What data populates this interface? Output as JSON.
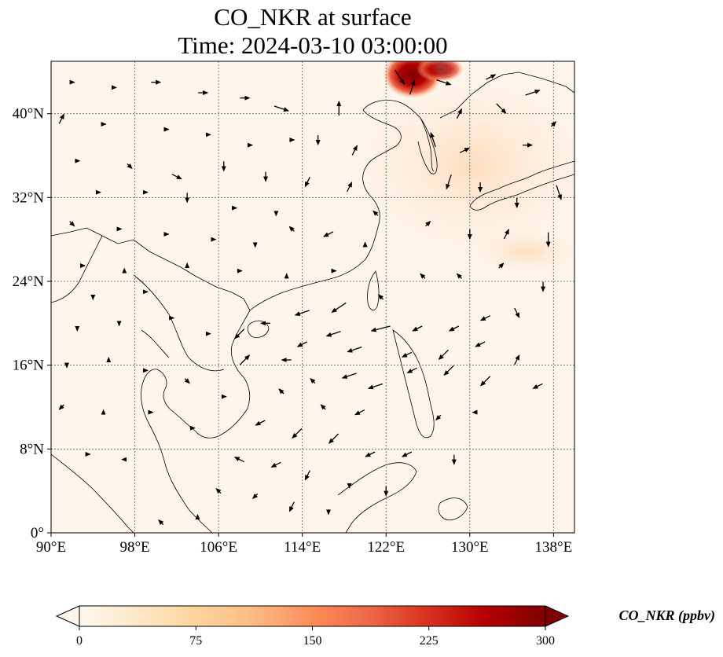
{
  "title_line1": "CO_NKR at surface",
  "title_line2": "Time: 2024-03-10 03:00:00",
  "map": {
    "lon_range": [
      90,
      140
    ],
    "lat_range": [
      0,
      45
    ],
    "lon_ticks": [
      {
        "value": 90,
        "label": "90°E"
      },
      {
        "value": 98,
        "label": "98°E"
      },
      {
        "value": 106,
        "label": "106°E"
      },
      {
        "value": 114,
        "label": "114°E"
      },
      {
        "value": 122,
        "label": "122°E"
      },
      {
        "value": 130,
        "label": "130°E"
      },
      {
        "value": 138,
        "label": "138°E"
      }
    ],
    "lat_ticks": [
      {
        "value": 0,
        "label": "0°"
      },
      {
        "value": 8,
        "label": "8°N"
      },
      {
        "value": 16,
        "label": "16°N"
      },
      {
        "value": 24,
        "label": "24°N"
      },
      {
        "value": 32,
        "label": "32°N"
      },
      {
        "value": 40,
        "label": "40°N"
      }
    ],
    "gridlines": true,
    "background_color": "#fff5eb"
  },
  "colorbar": {
    "label": "CO_NKR (ppbv)",
    "colormap": "OrRd",
    "colors": [
      "#fff7ec",
      "#fee8c8",
      "#fdd49e",
      "#fdbb84",
      "#fc8d59",
      "#ef6548",
      "#d7301f",
      "#b30000",
      "#7f0000"
    ],
    "range": [
      0,
      300
    ],
    "extend": "both",
    "ticks": [
      {
        "value": 0,
        "label": "0"
      },
      {
        "value": 75,
        "label": "75"
      },
      {
        "value": 150,
        "label": "150"
      },
      {
        "value": 225,
        "label": "225"
      },
      {
        "value": 300,
        "label": "300"
      }
    ]
  },
  "wind_vectors": [
    {
      "lon": 123.3,
      "lat": 43.5,
      "u": 2,
      "v": -3
    },
    {
      "lon": 124.5,
      "lat": 42.5,
      "u": 1,
      "v": 3
    },
    {
      "lon": 127.5,
      "lat": 43.0,
      "u": 3,
      "v": -1
    },
    {
      "lon": 132.0,
      "lat": 43.5,
      "u": 2,
      "v": 1
    },
    {
      "lon": 136.0,
      "lat": 42.0,
      "u": 3,
      "v": 1
    },
    {
      "lon": 129.0,
      "lat": 40.0,
      "u": 1,
      "v": 2
    },
    {
      "lon": 133.0,
      "lat": 40.5,
      "u": 2,
      "v": -2
    },
    {
      "lon": 138.0,
      "lat": 39.0,
      "u": 1,
      "v": 1
    },
    {
      "lon": 126.5,
      "lat": 37.5,
      "u": -1,
      "v": 3
    },
    {
      "lon": 129.5,
      "lat": 36.5,
      "u": 2,
      "v": 1
    },
    {
      "lon": 135.5,
      "lat": 37.0,
      "u": 2,
      "v": 0
    },
    {
      "lon": 128.0,
      "lat": 33.5,
      "u": -1,
      "v": -3
    },
    {
      "lon": 131.0,
      "lat": 33.0,
      "u": 0,
      "v": -2
    },
    {
      "lon": 134.5,
      "lat": 31.5,
      "u": 0,
      "v": -2
    },
    {
      "lon": 138.5,
      "lat": 32.5,
      "u": 1,
      "v": -3
    },
    {
      "lon": 126.0,
      "lat": 29.5,
      "u": 1,
      "v": 1
    },
    {
      "lon": 130.0,
      "lat": 28.5,
      "u": 0,
      "v": -2
    },
    {
      "lon": 133.5,
      "lat": 28.5,
      "u": 1,
      "v": 2
    },
    {
      "lon": 137.5,
      "lat": 28.0,
      "u": 0,
      "v": -3
    },
    {
      "lon": 117.5,
      "lat": 40.5,
      "u": 0,
      "v": 3
    },
    {
      "lon": 115.5,
      "lat": 37.5,
      "u": 0,
      "v": -2
    },
    {
      "lon": 119.0,
      "lat": 36.5,
      "u": 1,
      "v": 2
    },
    {
      "lon": 114.5,
      "lat": 33.5,
      "u": -1,
      "v": -2
    },
    {
      "lon": 118.5,
      "lat": 33.0,
      "u": 1,
      "v": 2
    },
    {
      "lon": 121.0,
      "lat": 30.5,
      "u": -1,
      "v": 1
    },
    {
      "lon": 116.5,
      "lat": 28.5,
      "u": -2,
      "v": -1
    },
    {
      "lon": 120.0,
      "lat": 27.5,
      "u": 0,
      "v": 1
    },
    {
      "lon": 113.0,
      "lat": 29.0,
      "u": -1,
      "v": 1
    },
    {
      "lon": 112.0,
      "lat": 40.5,
      "u": 3,
      "v": -1
    },
    {
      "lon": 108.5,
      "lat": 41.5,
      "u": 2,
      "v": 0
    },
    {
      "lon": 104.5,
      "lat": 42.0,
      "u": 2,
      "v": 0
    },
    {
      "lon": 100.0,
      "lat": 43.0,
      "u": 2,
      "v": 0
    },
    {
      "lon": 96.0,
      "lat": 42.5,
      "u": 1,
      "v": 0
    },
    {
      "lon": 92.0,
      "lat": 43.0,
      "u": 1,
      "v": 0
    },
    {
      "lon": 91.0,
      "lat": 39.5,
      "u": 1,
      "v": 2
    },
    {
      "lon": 95.0,
      "lat": 39.0,
      "u": 1,
      "v": 0
    },
    {
      "lon": 101.0,
      "lat": 38.5,
      "u": 1,
      "v": 0
    },
    {
      "lon": 105.0,
      "lat": 38.0,
      "u": 1,
      "v": 0
    },
    {
      "lon": 109.0,
      "lat": 37.0,
      "u": 1,
      "v": 0
    },
    {
      "lon": 113.0,
      "lat": 37.5,
      "u": 1,
      "v": 0
    },
    {
      "lon": 92.5,
      "lat": 35.5,
      "u": 1,
      "v": 0
    },
    {
      "lon": 97.5,
      "lat": 35.0,
      "u": 1,
      "v": -1
    },
    {
      "lon": 102.0,
      "lat": 34.0,
      "u": 2,
      "v": -1
    },
    {
      "lon": 106.5,
      "lat": 35.0,
      "u": 0,
      "v": -2
    },
    {
      "lon": 110.5,
      "lat": 34.0,
      "u": 0,
      "v": -2
    },
    {
      "lon": 94.5,
      "lat": 32.5,
      "u": 1,
      "v": 0
    },
    {
      "lon": 99.0,
      "lat": 32.5,
      "u": 1,
      "v": 0
    },
    {
      "lon": 103.0,
      "lat": 32.0,
      "u": 0,
      "v": -2
    },
    {
      "lon": 107.5,
      "lat": 31.0,
      "u": 1,
      "v": 0
    },
    {
      "lon": 111.5,
      "lat": 30.5,
      "u": 0,
      "v": -1
    },
    {
      "lon": 92.0,
      "lat": 29.5,
      "u": 1,
      "v": -1
    },
    {
      "lon": 96.5,
      "lat": 29.0,
      "u": 1,
      "v": 0
    },
    {
      "lon": 101.0,
      "lat": 28.5,
      "u": 1,
      "v": 0
    },
    {
      "lon": 105.5,
      "lat": 28.0,
      "u": 1,
      "v": 0
    },
    {
      "lon": 109.5,
      "lat": 27.5,
      "u": 0,
      "v": -1
    },
    {
      "lon": 93.0,
      "lat": 25.5,
      "u": 1,
      "v": 0
    },
    {
      "lon": 97.0,
      "lat": 25.0,
      "u": 0,
      "v": 1
    },
    {
      "lon": 103.0,
      "lat": 25.5,
      "u": 0,
      "v": 1
    },
    {
      "lon": 108.0,
      "lat": 25.0,
      "u": 1,
      "v": 0
    },
    {
      "lon": 112.5,
      "lat": 24.5,
      "u": 0,
      "v": 1
    },
    {
      "lon": 117.0,
      "lat": 25.0,
      "u": 1,
      "v": 0
    },
    {
      "lon": 121.5,
      "lat": 22.5,
      "u": -1,
      "v": 1
    },
    {
      "lon": 125.5,
      "lat": 24.5,
      "u": -1,
      "v": 1
    },
    {
      "lon": 129.0,
      "lat": 24.5,
      "u": -1,
      "v": 1
    },
    {
      "lon": 133.0,
      "lat": 25.5,
      "u": 1,
      "v": 1
    },
    {
      "lon": 137.0,
      "lat": 23.5,
      "u": 0,
      "v": -2
    },
    {
      "lon": 117.5,
      "lat": 21.5,
      "u": -3,
      "v": -2
    },
    {
      "lon": 114.0,
      "lat": 21.0,
      "u": -3,
      "v": -1
    },
    {
      "lon": 110.5,
      "lat": 20.0,
      "u": -2,
      "v": 0
    },
    {
      "lon": 108.0,
      "lat": 19.0,
      "u": -2,
      "v": -2
    },
    {
      "lon": 117.0,
      "lat": 19.0,
      "u": -3,
      "v": -1
    },
    {
      "lon": 121.5,
      "lat": 19.5,
      "u": -4,
      "v": -1
    },
    {
      "lon": 119.0,
      "lat": 17.5,
      "u": -3,
      "v": -1
    },
    {
      "lon": 114.0,
      "lat": 18.0,
      "u": -2,
      "v": -1
    },
    {
      "lon": 125.0,
      "lat": 19.5,
      "u": -2,
      "v": -1
    },
    {
      "lon": 128.5,
      "lat": 19.5,
      "u": -2,
      "v": -1
    },
    {
      "lon": 131.5,
      "lat": 20.5,
      "u": -2,
      "v": -1
    },
    {
      "lon": 134.5,
      "lat": 21.0,
      "u": 1,
      "v": -2
    },
    {
      "lon": 124.0,
      "lat": 17.0,
      "u": -2,
      "v": -1
    },
    {
      "lon": 127.5,
      "lat": 17.0,
      "u": -2,
      "v": -2
    },
    {
      "lon": 131.0,
      "lat": 18.0,
      "u": -2,
      "v": -1
    },
    {
      "lon": 134.5,
      "lat": 16.5,
      "u": 1,
      "v": 2
    },
    {
      "lon": 112.5,
      "lat": 16.5,
      "u": -2,
      "v": 0
    },
    {
      "lon": 108.5,
      "lat": 16.5,
      "u": 2,
      "v": 2
    },
    {
      "lon": 115.0,
      "lat": 14.5,
      "u": -1,
      "v": 1
    },
    {
      "lon": 118.5,
      "lat": 15.0,
      "u": -3,
      "v": -1
    },
    {
      "lon": 121.0,
      "lat": 14.0,
      "u": -3,
      "v": -1
    },
    {
      "lon": 124.5,
      "lat": 15.5,
      "u": -2,
      "v": -1
    },
    {
      "lon": 128.0,
      "lat": 15.5,
      "u": -2,
      "v": -2
    },
    {
      "lon": 131.5,
      "lat": 14.5,
      "u": -2,
      "v": -2
    },
    {
      "lon": 136.5,
      "lat": 14.0,
      "u": -2,
      "v": -1
    },
    {
      "lon": 112.0,
      "lat": 13.5,
      "u": -1,
      "v": 1
    },
    {
      "lon": 116.0,
      "lat": 12.0,
      "u": -1,
      "v": 1
    },
    {
      "lon": 119.5,
      "lat": 11.5,
      "u": -2,
      "v": -1
    },
    {
      "lon": 127.0,
      "lat": 11.0,
      "u": -1,
      "v": -1
    },
    {
      "lon": 130.5,
      "lat": 11.5,
      "u": -1,
      "v": 0
    },
    {
      "lon": 110.0,
      "lat": 10.5,
      "u": -2,
      "v": -1
    },
    {
      "lon": 113.5,
      "lat": 9.5,
      "u": -2,
      "v": -2
    },
    {
      "lon": 117.0,
      "lat": 9.0,
      "u": -2,
      "v": -2
    },
    {
      "lon": 120.5,
      "lat": 7.5,
      "u": -2,
      "v": -1
    },
    {
      "lon": 124.0,
      "lat": 7.5,
      "u": -2,
      "v": -1
    },
    {
      "lon": 128.5,
      "lat": 7.0,
      "u": 0,
      "v": -2
    },
    {
      "lon": 108.0,
      "lat": 7.0,
      "u": -2,
      "v": 1
    },
    {
      "lon": 111.5,
      "lat": 6.5,
      "u": -2,
      "v": -1
    },
    {
      "lon": 114.5,
      "lat": 5.5,
      "u": -1,
      "v": -2
    },
    {
      "lon": 118.5,
      "lat": 4.5,
      "u": 0,
      "v": -1
    },
    {
      "lon": 122.0,
      "lat": 4.0,
      "u": 0,
      "v": -2
    },
    {
      "lon": 106.0,
      "lat": 4.0,
      "u": -1,
      "v": 1
    },
    {
      "lon": 109.5,
      "lat": 3.5,
      "u": -1,
      "v": -1
    },
    {
      "lon": 113.0,
      "lat": 2.5,
      "u": -1,
      "v": -2
    },
    {
      "lon": 116.5,
      "lat": 2.0,
      "u": 0,
      "v": -1
    },
    {
      "lon": 104.0,
      "lat": 1.5,
      "u": 0,
      "v": 1
    },
    {
      "lon": 100.5,
      "lat": 1.0,
      "u": -1,
      "v": 1
    },
    {
      "lon": 97.0,
      "lat": 7.0,
      "u": -1,
      "v": 0
    },
    {
      "lon": 93.5,
      "lat": 7.5,
      "u": 1,
      "v": 0
    },
    {
      "lon": 91.0,
      "lat": 12.0,
      "u": -1,
      "v": -1
    },
    {
      "lon": 95.0,
      "lat": 11.5,
      "u": 0,
      "v": 1
    },
    {
      "lon": 99.5,
      "lat": 11.5,
      "u": 1,
      "v": 0
    },
    {
      "lon": 103.5,
      "lat": 10.0,
      "u": 1,
      "v": 0
    },
    {
      "lon": 91.5,
      "lat": 16.0,
      "u": 0,
      "v": -1
    },
    {
      "lon": 95.5,
      "lat": 16.5,
      "u": 0,
      "v": 1
    },
    {
      "lon": 99.0,
      "lat": 15.5,
      "u": 1,
      "v": 0
    },
    {
      "lon": 103.0,
      "lat": 14.5,
      "u": 1,
      "v": -1
    },
    {
      "lon": 106.5,
      "lat": 13.0,
      "u": 1,
      "v": 0
    },
    {
      "lon": 92.5,
      "lat": 19.5,
      "u": 0,
      "v": -1
    },
    {
      "lon": 96.5,
      "lat": 20.0,
      "u": 0,
      "v": -1
    },
    {
      "lon": 101.5,
      "lat": 20.5,
      "u": 1,
      "v": 0
    },
    {
      "lon": 105.0,
      "lat": 19.0,
      "u": 1,
      "v": 0
    },
    {
      "lon": 94.0,
      "lat": 22.5,
      "u": 0,
      "v": -1
    },
    {
      "lon": 99.0,
      "lat": 23.0,
      "u": 1,
      "v": 0
    }
  ]
}
